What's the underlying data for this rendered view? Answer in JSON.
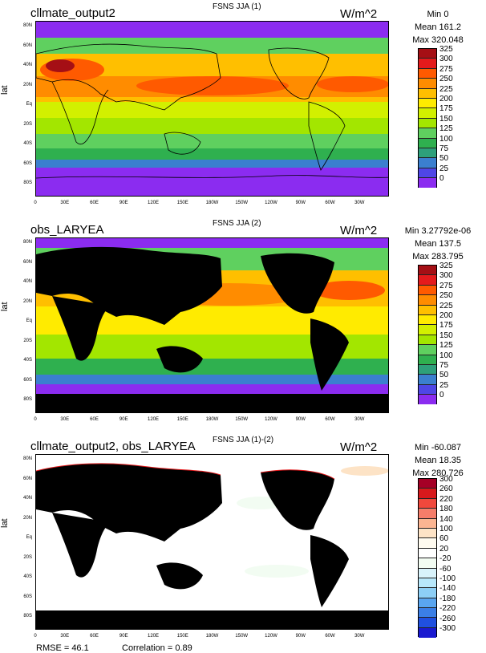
{
  "panels": [
    {
      "title_left": "cllmate_output2",
      "title_center": "FSNS JJA (1)",
      "units": "W/m^2",
      "stats": {
        "min": "Min 0",
        "mean": "Mean 161.2",
        "max": "Max 320.048"
      },
      "ylabel": "lat",
      "colorbar_labels": [
        "325",
        "300",
        "275",
        "250",
        "225",
        "200",
        "175",
        "150",
        "125",
        "100",
        "75",
        "50",
        "25",
        "0"
      ],
      "colorbar_colors": [
        "#a50f15",
        "#e41a1c",
        "#ff5a00",
        "#ff8c00",
        "#ffbf00",
        "#ffeb00",
        "#d2f000",
        "#a3e600",
        "#5fd05f",
        "#2fb04f",
        "#2ea07a",
        "#3b7fcf",
        "#4f46e6",
        "#8b2cf0"
      ]
    },
    {
      "title_left": "obs_LARYEA",
      "title_center": "FSNS JJA (2)",
      "units": "W/m^2",
      "stats": {
        "min": "Min 3.27792e-06",
        "mean": "Mean 137.5",
        "max": "Max 283.795"
      },
      "ylabel": "lat",
      "colorbar_labels": [
        "325",
        "300",
        "275",
        "250",
        "225",
        "200",
        "175",
        "150",
        "125",
        "100",
        "75",
        "50",
        "25",
        "0"
      ],
      "colorbar_colors": [
        "#a50f15",
        "#e41a1c",
        "#ff5a00",
        "#ff8c00",
        "#ffbf00",
        "#ffeb00",
        "#d2f000",
        "#a3e600",
        "#5fd05f",
        "#2fb04f",
        "#2ea07a",
        "#3b7fcf",
        "#4f46e6",
        "#8b2cf0"
      ]
    },
    {
      "title_left": "cllmate_output2, obs_LARYEA",
      "title_center": "FSNS JJA (1)-(2)",
      "units": "W/m^2",
      "stats": {
        "min": "Min -60.087",
        "mean": "Mean 18.35",
        "max": "Max 280.726"
      },
      "ylabel": "lat",
      "colorbar_labels": [
        "300",
        "260",
        "220",
        "180",
        "140",
        "100",
        "60",
        "20",
        "-20",
        "-60",
        "-100",
        "-140",
        "-180",
        "-220",
        "-260",
        "-300"
      ],
      "colorbar_colors": [
        "#a50026",
        "#d7191c",
        "#f0483c",
        "#f57d6a",
        "#fbb592",
        "#fde3c6",
        "#fffbf0",
        "#ffffff",
        "#f2fcf2",
        "#d8f3fb",
        "#b8e8fb",
        "#8dcff6",
        "#5aa6f0",
        "#3b7fe6",
        "#2050e0",
        "#1a1ad0"
      ]
    }
  ],
  "lat_ticks": [
    "80N",
    "60N",
    "40N",
    "20N",
    "Eq",
    "20S",
    "40S",
    "60S",
    "80S"
  ],
  "lon_ticks": [
    "0",
    "30E",
    "60E",
    "90E",
    "120E",
    "150E",
    "180W",
    "150W",
    "120W",
    "90W",
    "60W",
    "30W"
  ],
  "footer": {
    "rmse": "RMSE = 46.1",
    "correlation": "Correlation = 0.89"
  }
}
